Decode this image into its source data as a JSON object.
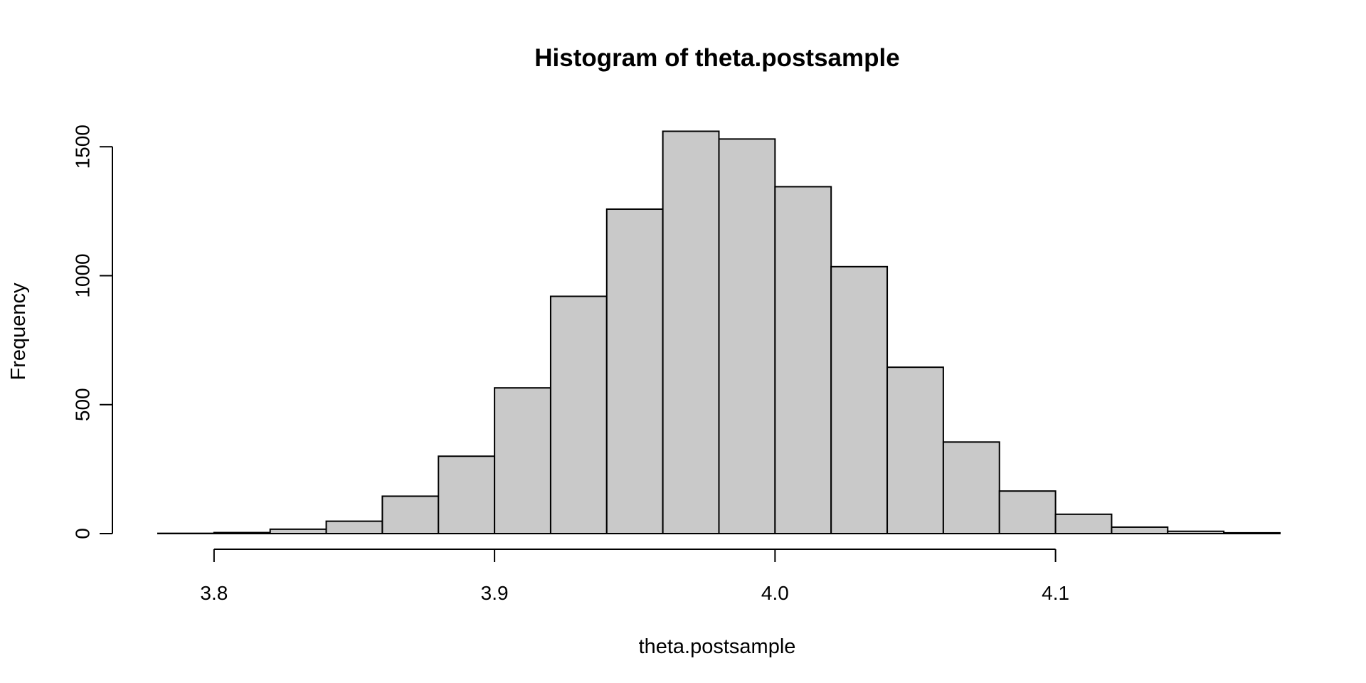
{
  "chart_data": {
    "type": "bar",
    "title": "Histogram of theta.postsample",
    "xlabel": "theta.postsample",
    "ylabel": "Frequency",
    "bin_edges": [
      3.78,
      3.8,
      3.82,
      3.84,
      3.86,
      3.88,
      3.9,
      3.92,
      3.94,
      3.96,
      3.98,
      4.0,
      4.02,
      4.04,
      4.06,
      4.08,
      4.1,
      4.12,
      4.14,
      4.16,
      4.18
    ],
    "counts": [
      1,
      4,
      17,
      48,
      145,
      300,
      565,
      920,
      1258,
      1560,
      1530,
      1345,
      1035,
      645,
      355,
      165,
      75,
      25,
      9,
      3
    ],
    "xticks": [
      3.8,
      3.9,
      4.0,
      4.1
    ],
    "xtick_labels": [
      "3.8",
      "3.9",
      "4.0",
      "4.1"
    ],
    "yticks": [
      0,
      500,
      1000,
      1500
    ],
    "ytick_labels": [
      "0",
      "500",
      "1000",
      "1500"
    ],
    "xlim": [
      3.78,
      4.18
    ],
    "ylim": [
      0,
      1600
    ],
    "grid": false,
    "bar_color": "#c9c9c9",
    "edge_color": "#000000"
  }
}
